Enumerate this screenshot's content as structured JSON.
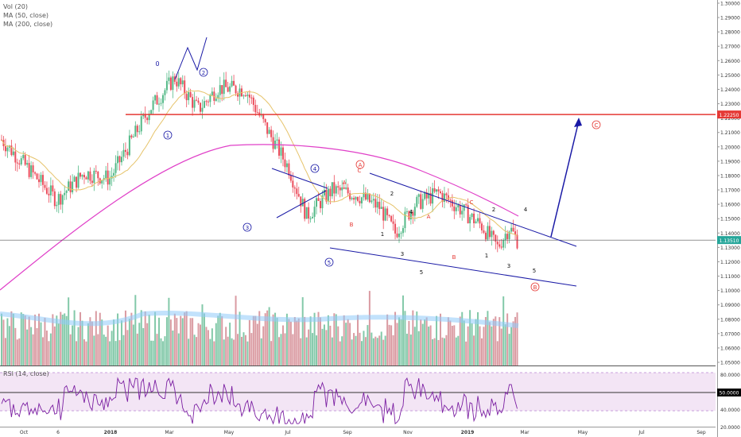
{
  "chart_data": {
    "type": "candlestick",
    "indicators": [
      "Vol (20)",
      "MA (50, close)",
      "MA (200, close)"
    ],
    "rsi_title": "RSI (14, close)",
    "x_ticks": [
      "Oct",
      "6",
      "2018",
      "Mar",
      "May",
      "Jul",
      "Sep",
      "Nov",
      "2019",
      "Mar",
      "May",
      "Jul",
      "Sep"
    ],
    "y_ticks": [
      "1.30000",
      "1.29000",
      "1.28000",
      "1.27000",
      "1.26000",
      "1.25000",
      "1.24000",
      "1.23000",
      "1.22000",
      "1.21000",
      "1.20000",
      "1.19000",
      "1.18000",
      "1.17000",
      "1.16000",
      "1.15000",
      "1.14000",
      "1.13000",
      "1.12000",
      "1.11000",
      "1.10000",
      "1.09000",
      "1.08000",
      "1.07000",
      "1.06000",
      "1.05000"
    ],
    "y_range": [
      1.05,
      1.3
    ],
    "rsi_ticks": [
      "80.0000",
      "60.0000",
      "40.0000",
      "20.0000"
    ],
    "rsi_level_label": "50.0000",
    "price_label": "1.13510",
    "resistance_label": "1.22250",
    "resistance_level": 1.2225,
    "last_price": 1.1351,
    "colors": {
      "up": "#53b987",
      "down": "#eb4d5c",
      "ma50": "#e6c36a",
      "ma200": "#e040c8",
      "resistance": "#e53935",
      "wave": "#1a1aa6",
      "rsi": "#7b1fa2",
      "volume_ma": "#90caf9"
    },
    "wave_labels": {
      "circled_blue": [
        "0",
        "1",
        "2",
        "3",
        "4",
        "5"
      ],
      "circled_red": [
        "A",
        "B",
        "C"
      ],
      "plain_red": [
        "A",
        "B",
        "C",
        "A",
        "B",
        "C"
      ],
      "plain_black": [
        "1",
        "2",
        "3",
        "4",
        "5",
        "1",
        "2",
        "3",
        "4",
        "5"
      ]
    }
  }
}
